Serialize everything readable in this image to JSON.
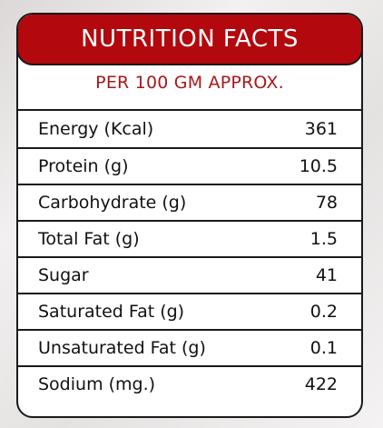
{
  "title": "NUTRITION FACTS",
  "subtitle": "PER 100 GM APPROX.",
  "rows": [
    {
      "label": "Energy (Kcal)",
      "value": "361"
    },
    {
      "label": "Protein (g)",
      "value": "10.5"
    },
    {
      "label": "Carbohydrate (g)",
      "value": "78"
    },
    {
      "label": "Total Fat (g)",
      "value": "1.5"
    },
    {
      "label": "Sugar",
      "value": "41"
    },
    {
      "label": "Saturated Fat (g)",
      "value": "0.2"
    },
    {
      "label": "Unsaturated Fat (g)",
      "value": "0.1"
    },
    {
      "label": "Sodium (mg.)",
      "value": "422"
    }
  ],
  "colors": {
    "header_bg": "#b3080d",
    "subtitle_text": "#a8171b",
    "border": "#1a1a1a"
  }
}
